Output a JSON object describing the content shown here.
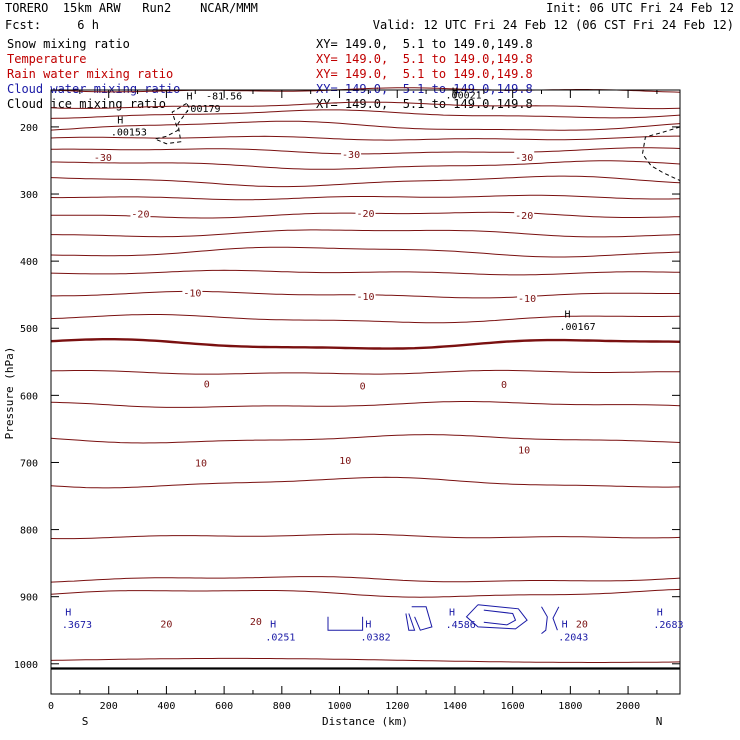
{
  "header": {
    "model": "TORERO  15km ARW   Run2    NCAR/MMM",
    "init": "Init: 06 UTC Fri 24 Feb 12",
    "fcst": "Fcst:     6 h",
    "valid": "Valid: 12 UTC Fri 24 Feb 12 (06 CST Fri 24 Feb 12)"
  },
  "legend": [
    {
      "name": "Snow mixing ratio",
      "xy": "XY= 149.0,  5.1 to 149.0,149.8",
      "color": "#000000"
    },
    {
      "name": "Temperature",
      "xy": "XY= 149.0,  5.1 to 149.0,149.8",
      "color": "#c00000"
    },
    {
      "name": "Rain water mixing ratio",
      "xy": "XY= 149.0,  5.1 to 149.0,149.8",
      "color": "#c00000"
    },
    {
      "name": "Cloud water mixing ratio",
      "xy": "XY= 149.0,  5.1 to 149.0,149.8",
      "color": "#1a1aa6"
    },
    {
      "name": "Cloud ice mixing ratio",
      "xy": "XY= 149.0,  5.1 to 149.0,149.8",
      "color": "#000000"
    }
  ],
  "chart_data": {
    "type": "line",
    "xlabel": "Distance (km)",
    "ylabel": "Pressure (hPa)",
    "xlim": [
      0,
      2180
    ],
    "ylim": [
      145,
      1045
    ],
    "y_inverted": true,
    "xticks": [
      0,
      200,
      400,
      600,
      800,
      1000,
      1200,
      1400,
      1600,
      1800,
      2000
    ],
    "yticks": [
      200,
      300,
      400,
      500,
      600,
      700,
      800,
      900,
      1000
    ],
    "orientation": {
      "left": "S",
      "right": "N"
    },
    "temperature_contour_interval": 5,
    "temperature_levels": [
      {
        "base": 145,
        "label": ""
      },
      {
        "base": 168,
        "label": ""
      },
      {
        "base": 181,
        "label": ""
      },
      {
        "base": 199,
        "label": ""
      },
      {
        "base": 217,
        "label": ""
      },
      {
        "base": 236,
        "label": ""
      },
      {
        "base": 257,
        "label": ""
      },
      {
        "base": 281,
        "label": "-30"
      },
      {
        "base": 305,
        "label": ""
      },
      {
        "base": 331,
        "label": "-20"
      },
      {
        "base": 358,
        "label": ""
      },
      {
        "base": 386,
        "label": ""
      },
      {
        "base": 417,
        "label": "-10"
      },
      {
        "base": 450,
        "label": ""
      },
      {
        "base": 486,
        "label": ""
      },
      {
        "base": 524,
        "label": "0"
      },
      {
        "base": 566,
        "label": ""
      },
      {
        "base": 614,
        "label": "10"
      },
      {
        "base": 665,
        "label": ""
      },
      {
        "base": 730,
        "label": ""
      },
      {
        "base": 810,
        "label": "20"
      },
      {
        "base": 874,
        "label": ""
      },
      {
        "base": 895,
        "label": ""
      }
    ],
    "temperature_labels": [
      {
        "x": 180,
        "p": 245,
        "text": "-30"
      },
      {
        "x": 1040,
        "p": 240,
        "text": "-30"
      },
      {
        "x": 1640,
        "p": 245,
        "text": "-30"
      },
      {
        "x": 310,
        "p": 329,
        "text": "-20"
      },
      {
        "x": 1090,
        "p": 328,
        "text": "-20"
      },
      {
        "x": 1640,
        "p": 331,
        "text": "-20"
      },
      {
        "x": 490,
        "p": 447,
        "text": "-10"
      },
      {
        "x": 1090,
        "p": 452,
        "text": "-10"
      },
      {
        "x": 1650,
        "p": 455,
        "text": "-10"
      },
      {
        "x": 540,
        "p": 582,
        "text": "0"
      },
      {
        "x": 1080,
        "p": 585,
        "text": "0"
      },
      {
        "x": 1570,
        "p": 583,
        "text": "0"
      },
      {
        "x": 520,
        "p": 700,
        "text": "10"
      },
      {
        "x": 1020,
        "p": 696,
        "text": "10"
      },
      {
        "x": 1640,
        "p": 681,
        "text": "10"
      },
      {
        "x": 400,
        "p": 940,
        "text": "20"
      },
      {
        "x": 710,
        "p": 936,
        "text": "20"
      },
      {
        "x": 1840,
        "p": 940,
        "text": "20"
      }
    ],
    "extrema": [
      {
        "x": 480,
        "p": 153,
        "text": "H",
        "color": "#000000"
      },
      {
        "x": 525,
        "p": 172,
        "text": ".00179",
        "color": "#000000"
      },
      {
        "x": 240,
        "p": 189,
        "text": "H",
        "color": "#000000"
      },
      {
        "x": 270,
        "p": 207,
        "text": ".00153",
        "color": "#000000"
      },
      {
        "x": 1400,
        "p": 146,
        "text": "H",
        "color": "#000000"
      },
      {
        "x": 1430,
        "p": 152,
        "text": ".00021",
        "color": "#000000"
      },
      {
        "x": 1790,
        "p": 478,
        "text": "H",
        "color": "#000000"
      },
      {
        "x": 1825,
        "p": 497,
        "text": ".00167",
        "color": "#000000"
      },
      {
        "x": 60,
        "p": 922,
        "text": "H",
        "color": "#1a1aa6"
      },
      {
        "x": 90,
        "p": 941,
        "text": ".3673",
        "color": "#1a1aa6"
      },
      {
        "x": 770,
        "p": 940,
        "text": "H",
        "color": "#1a1aa6"
      },
      {
        "x": 795,
        "p": 959,
        "text": ".0251",
        "color": "#1a1aa6"
      },
      {
        "x": 1100,
        "p": 940,
        "text": "H",
        "color": "#1a1aa6"
      },
      {
        "x": 1125,
        "p": 959,
        "text": ".0382",
        "color": "#1a1aa6"
      },
      {
        "x": 1390,
        "p": 922,
        "text": "H",
        "color": "#1a1aa6"
      },
      {
        "x": 1420,
        "p": 941,
        "text": ".4586",
        "color": "#1a1aa6"
      },
      {
        "x": 1780,
        "p": 940,
        "text": "H",
        "color": "#1a1aa6"
      },
      {
        "x": 1810,
        "p": 959,
        "text": ".2043",
        "color": "#1a1aa6"
      },
      {
        "x": 2110,
        "p": 922,
        "text": "H",
        "color": "#1a1aa6"
      },
      {
        "x": 2140,
        "p": 941,
        "text": ".2683",
        "color": "#1a1aa6"
      }
    ],
    "top_label": {
      "x": 600,
      "p": 153,
      "text": "-81.56"
    },
    "colors": {
      "temperature": "#7a1010",
      "cloud_water": "#1a1aa6",
      "cloud_ice": "#000000",
      "axes": "#000000"
    }
  }
}
